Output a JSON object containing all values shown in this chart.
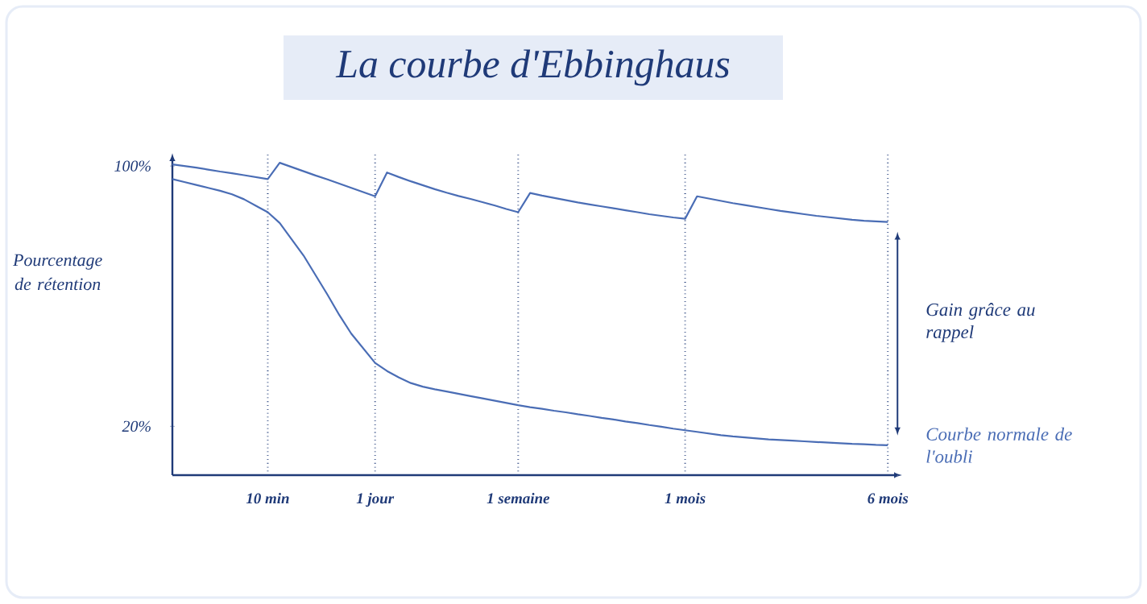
{
  "chart_data": {
    "type": "line",
    "title": "La courbe d'Ebbinghaus",
    "ylabel": "Pourcentage de rétention",
    "categories": [
      null,
      null,
      null,
      null,
      null,
      null,
      null,
      null,
      "10 min",
      null,
      null,
      null,
      null,
      null,
      null,
      null,
      null,
      "1 jour",
      null,
      null,
      null,
      null,
      null,
      null,
      null,
      null,
      null,
      null,
      null,
      "1 semaine",
      null,
      null,
      null,
      null,
      null,
      null,
      null,
      null,
      null,
      null,
      null,
      null,
      null,
      "1 mois",
      null,
      null,
      null,
      null,
      null,
      null,
      null,
      null,
      null,
      null,
      null,
      null,
      null,
      null,
      null,
      null,
      "6 mois"
    ],
    "ylim": [
      5,
      104
    ],
    "yticks": [
      {
        "value": 100,
        "label": "100%"
      },
      {
        "value": 20,
        "label": "20%"
      }
    ],
    "series": [
      {
        "color": "#4a6db5",
        "values": [
          100.5,
          100,
          99.5,
          98.9,
          98.3,
          97.8,
          97.2,
          96.6,
          96,
          101,
          99.7,
          98.4,
          97.1,
          95.9,
          94.6,
          93.3,
          92,
          90.7,
          98,
          96.6,
          95.3,
          94.1,
          92.9,
          91.8,
          90.8,
          89.9,
          88.9,
          87.9,
          86.8,
          85.8,
          91.7,
          90.9,
          90.2,
          89.5,
          88.8,
          88.2,
          87.6,
          87,
          86.4,
          85.8,
          85.2,
          84.7,
          84.2,
          83.8,
          90.7,
          90,
          89.3,
          88.6,
          88,
          87.4,
          86.8,
          86.2,
          85.7,
          85.2,
          84.7,
          84.3,
          83.9,
          83.5,
          83.2,
          83,
          82.8
        ]
      },
      {
        "name": "Courbe normale de l'oubli",
        "color": "#4a6db5",
        "values": [
          96,
          95.1,
          94.2,
          93.3,
          92.4,
          91.3,
          89.8,
          87.8,
          85.8,
          82.5,
          77.5,
          72.5,
          66.5,
          60.5,
          54.2,
          48.5,
          44,
          39.5,
          37,
          35,
          33.3,
          32.2,
          31.4,
          30.7,
          30,
          29.3,
          28.6,
          27.9,
          27.2,
          26.5,
          25.9,
          25.4,
          24.8,
          24.3,
          23.7,
          23.2,
          22.6,
          22.1,
          21.5,
          21,
          20.4,
          19.9,
          19.3,
          18.8,
          18.3,
          17.8,
          17.3,
          16.9,
          16.6,
          16.3,
          16,
          15.8,
          15.6,
          15.4,
          15.2,
          15,
          14.8,
          14.6,
          14.5,
          14.3,
          14.2
        ]
      }
    ],
    "annotations": [
      "Gain grâce au rappel"
    ],
    "grid": "x",
    "legend": "right"
  }
}
